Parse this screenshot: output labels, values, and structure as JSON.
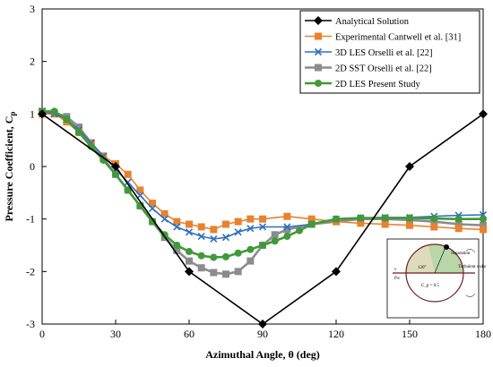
{
  "chart_data": {
    "type": "line",
    "title": "",
    "xlabel": "Azimuthal Angle, θ (deg)",
    "ylabel": "Pressure Coefficient, C",
    "ylabel_sub": "p",
    "xlim": [
      0,
      180
    ],
    "ylim": [
      -3,
      3
    ],
    "xticks": [
      0,
      30,
      60,
      90,
      120,
      150,
      180
    ],
    "yticks": [
      3,
      2,
      1,
      0,
      -1,
      -2,
      -3
    ],
    "grid": false,
    "legend_position": "top-right",
    "series": [
      {
        "name": "Analytical Solution",
        "color": "#000000",
        "marker": "diamond",
        "x": [
          0,
          30,
          60,
          90,
          120,
          150,
          180
        ],
        "y": [
          1.0,
          0.0,
          -2.0,
          -3.0,
          -2.0,
          0.0,
          1.0
        ]
      },
      {
        "name": "Experimental Cantwell et al. [31]",
        "color": "#e8822e",
        "marker": "square",
        "x": [
          0,
          5,
          10,
          15,
          20,
          25,
          30,
          35,
          40,
          45,
          50,
          55,
          60,
          65,
          70,
          75,
          80,
          85,
          90,
          100,
          110,
          120,
          130,
          140,
          150,
          160,
          170,
          180
        ],
        "y": [
          1.0,
          1.0,
          0.85,
          0.65,
          0.45,
          0.2,
          0.05,
          -0.15,
          -0.45,
          -0.7,
          -0.9,
          -1.05,
          -1.1,
          -1.15,
          -1.2,
          -1.1,
          -1.05,
          -1.0,
          -1.0,
          -0.95,
          -1.0,
          -1.05,
          -1.08,
          -1.1,
          -1.12,
          -1.15,
          -1.18,
          -1.2
        ]
      },
      {
        "name": "3D LES Orselli et al. [22]",
        "color": "#2f6fc4",
        "marker": "x",
        "x": [
          0,
          5,
          10,
          15,
          20,
          25,
          30,
          35,
          40,
          45,
          50,
          55,
          60,
          65,
          70,
          75,
          80,
          85,
          90,
          100,
          110,
          120,
          130,
          140,
          150,
          160,
          170,
          180
        ],
        "y": [
          1.05,
          1.0,
          0.9,
          0.7,
          0.45,
          0.2,
          -0.05,
          -0.3,
          -0.55,
          -0.8,
          -1.0,
          -1.15,
          -1.25,
          -1.33,
          -1.38,
          -1.35,
          -1.25,
          -1.18,
          -1.15,
          -1.15,
          -1.1,
          -1.0,
          -0.98,
          -0.97,
          -0.97,
          -0.95,
          -0.93,
          -0.92
        ]
      },
      {
        "name": "2D SST Orselli et al. [22]",
        "color": "#8c8c8c",
        "marker": "square",
        "x": [
          0,
          5,
          10,
          15,
          20,
          25,
          30,
          35,
          40,
          45,
          50,
          55,
          60,
          65,
          70,
          75,
          80,
          85,
          90,
          95,
          100,
          110,
          120,
          130,
          140,
          150,
          160,
          170,
          180
        ],
        "y": [
          1.05,
          1.02,
          0.95,
          0.75,
          0.45,
          0.15,
          -0.15,
          -0.45,
          -0.75,
          -1.05,
          -1.35,
          -1.6,
          -1.8,
          -1.93,
          -2.02,
          -2.05,
          -2.0,
          -1.8,
          -1.5,
          -1.3,
          -1.2,
          -1.1,
          -1.05,
          -1.0,
          -1.0,
          -1.02,
          -1.05,
          -1.1,
          -1.12
        ]
      },
      {
        "name": "2D LES Present Study",
        "color": "#3f9a37",
        "marker": "circle",
        "x": [
          0,
          5,
          10,
          15,
          20,
          25,
          30,
          35,
          40,
          45,
          50,
          55,
          60,
          65,
          70,
          75,
          80,
          85,
          90,
          95,
          100,
          105,
          110,
          120,
          130,
          140,
          150,
          160,
          170,
          180
        ],
        "y": [
          1.05,
          1.05,
          0.9,
          0.65,
          0.38,
          0.12,
          -0.15,
          -0.45,
          -0.75,
          -1.05,
          -1.3,
          -1.5,
          -1.62,
          -1.7,
          -1.73,
          -1.72,
          -1.65,
          -1.58,
          -1.5,
          -1.42,
          -1.33,
          -1.22,
          -1.1,
          -1.0,
          -0.98,
          -0.98,
          -0.98,
          -0.99,
          -1.0,
          -1.0
        ]
      }
    ]
  },
  "inset": {
    "separation_label": "Separation",
    "angle_label": "120°",
    "wake_label": "Turbulent wake",
    "cp_label": "C_p = 0.5",
    "flow_label": "v",
    "freestream_label": "P∞"
  }
}
